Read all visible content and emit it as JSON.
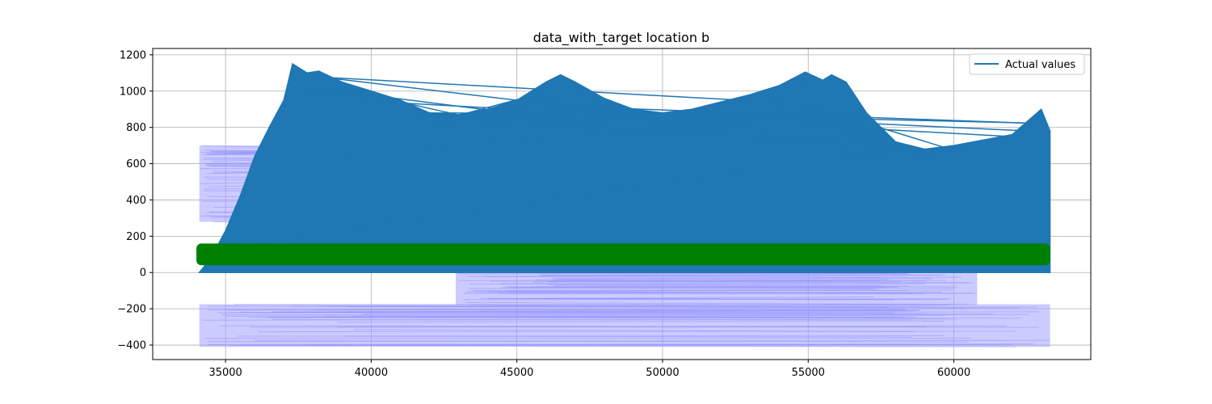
{
  "chart_data": {
    "type": "line",
    "title": "data_with_target location b",
    "xlabel": "",
    "ylabel": "",
    "xlim": [
      32500,
      64700
    ],
    "ylim": [
      -480,
      1235
    ],
    "xticks": [
      35000,
      40000,
      45000,
      50000,
      55000,
      60000
    ],
    "xtick_labels": [
      "35000",
      "40000",
      "45000",
      "50000",
      "55000",
      "60000"
    ],
    "yticks": [
      -400,
      -200,
      0,
      200,
      400,
      600,
      800,
      1000,
      1200
    ],
    "ytick_labels": [
      "−400",
      "−200",
      "0",
      "200",
      "400",
      "600",
      "800",
      "1000",
      "1200"
    ],
    "grid": true,
    "legend_position": "upper right",
    "series": [
      {
        "name": "Actual values",
        "color": "#1f77b4",
        "x_range": [
          34100,
          63300
        ],
        "envelope": [
          [
            34100,
            0
          ],
          [
            34500,
            80
          ],
          [
            35000,
            230
          ],
          [
            35500,
            420
          ],
          [
            36000,
            640
          ],
          [
            36500,
            800
          ],
          [
            37000,
            950
          ],
          [
            37300,
            1150
          ],
          [
            37800,
            1100
          ],
          [
            38200,
            1110
          ],
          [
            39000,
            1050
          ],
          [
            40000,
            1000
          ],
          [
            41000,
            950
          ],
          [
            42000,
            880
          ],
          [
            43000,
            870
          ],
          [
            44000,
            900
          ],
          [
            45000,
            950
          ],
          [
            46000,
            1050
          ],
          [
            46500,
            1090
          ],
          [
            47000,
            1050
          ],
          [
            48000,
            960
          ],
          [
            49000,
            900
          ],
          [
            50000,
            880
          ],
          [
            51000,
            900
          ],
          [
            52000,
            940
          ],
          [
            53000,
            980
          ],
          [
            54000,
            1030
          ],
          [
            54900,
            1105
          ],
          [
            55500,
            1060
          ],
          [
            55800,
            1090
          ],
          [
            56300,
            1050
          ],
          [
            57000,
            880
          ],
          [
            58000,
            720
          ],
          [
            59000,
            680
          ],
          [
            60000,
            700
          ],
          [
            61000,
            730
          ],
          [
            62000,
            760
          ],
          [
            63000,
            900
          ],
          [
            63300,
            780
          ]
        ]
      },
      {
        "name": "",
        "color": "#008000",
        "band": [
          40,
          160
        ],
        "x_range": [
          34000,
          63300
        ]
      },
      {
        "name": "",
        "color": "#a0a0ff",
        "bands": [
          {
            "x_range": [
              34100,
              36600
            ],
            "y_range": [
              280,
              700
            ]
          },
          {
            "x_range": [
              42900,
              60800
            ],
            "y_range": [
              -180,
              0
            ]
          },
          {
            "x_range": [
              34100,
              63300
            ],
            "y_range": [
              -410,
              -175
            ]
          },
          {
            "x_range": [
              60500,
              63300
            ],
            "y_range": [
              0,
              700
            ]
          }
        ]
      }
    ]
  }
}
